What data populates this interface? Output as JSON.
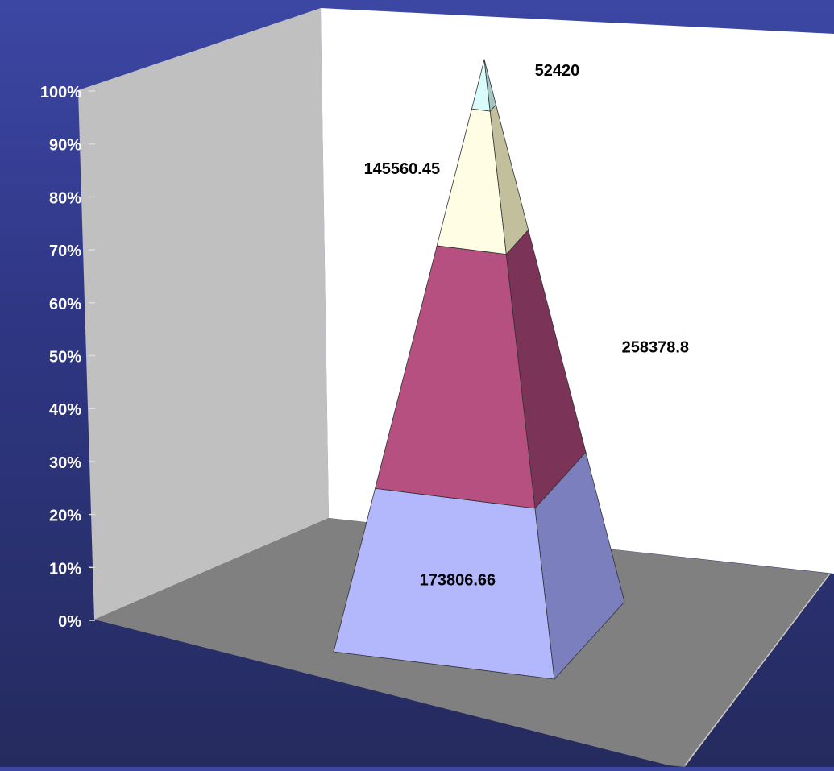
{
  "chart_data": {
    "type": "pyramid",
    "stacked": "100%",
    "series": [
      {
        "value": 173806.66,
        "color": "#b3b8fd",
        "side_color": "#7b7fbd"
      },
      {
        "value": 258378.8,
        "color": "#b55080",
        "side_color": "#7b3358"
      },
      {
        "value": 145560.45,
        "color": "#fffde3",
        "side_color": "#c2c09c"
      },
      {
        "value": 52420,
        "color": "#d9fbfb",
        "side_color": "#a5c7c7"
      }
    ],
    "data_labels": [
      "173806.66",
      "258378.8",
      "145560.45",
      "52420"
    ],
    "y_ticks": [
      "0%",
      "10%",
      "20%",
      "30%",
      "40%",
      "50%",
      "60%",
      "70%",
      "80%",
      "90%",
      "100%"
    ],
    "ylim": [
      0,
      100
    ],
    "walls": {
      "back": "#ffffff",
      "side": "#c0c0c0",
      "floor": "#808080"
    }
  }
}
